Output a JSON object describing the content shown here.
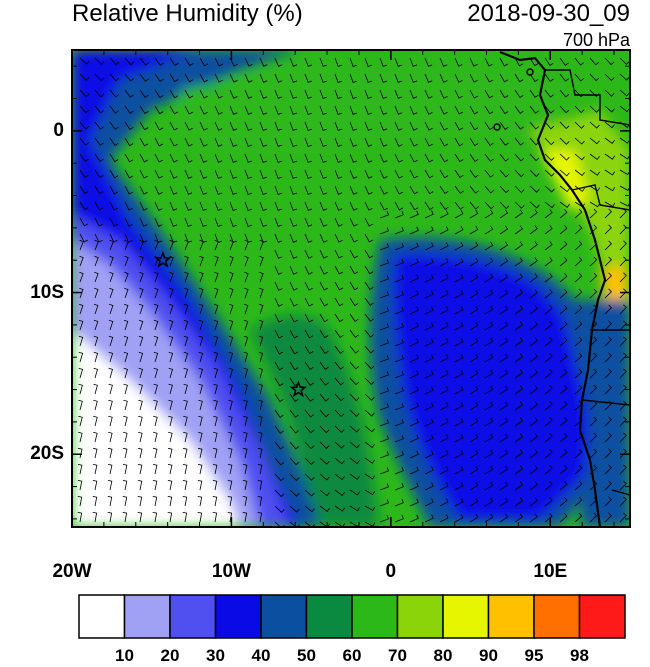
{
  "header": {
    "title": "Relative Humidity (%)",
    "datetime": "2018-09-30_09",
    "level": "700 hPa"
  },
  "axes": {
    "x_ticks": [
      {
        "lon": -20,
        "label": "20W"
      },
      {
        "lon": -10,
        "label": "10W"
      },
      {
        "lon": 0,
        "label": "0"
      },
      {
        "lon": 10,
        "label": "10E"
      }
    ],
    "y_ticks": [
      {
        "lat": 0,
        "label": "0"
      },
      {
        "lat": -10,
        "label": "10S"
      },
      {
        "lat": -20,
        "label": "20S"
      }
    ],
    "lon_range": [
      -20,
      15
    ],
    "lat_range": [
      -24.5,
      5
    ]
  },
  "markers": [
    {
      "name": "star-marker-1",
      "lon": -14.3,
      "lat": -8.0
    },
    {
      "name": "star-marker-2",
      "lon": -5.8,
      "lat": -16.0
    }
  ],
  "colorbar": {
    "colors": [
      "#ffffff",
      "#a0a0f5",
      "#5050f0",
      "#0a0ae6",
      "#0a4fa0",
      "#0a8a40",
      "#2db81a",
      "#8cd40a",
      "#e6f500",
      "#ffc000",
      "#ff7000",
      "#ff1a1a"
    ],
    "labels": [
      "10",
      "20",
      "30",
      "40",
      "50",
      "60",
      "70",
      "80",
      "90",
      "95",
      "98"
    ]
  }
}
